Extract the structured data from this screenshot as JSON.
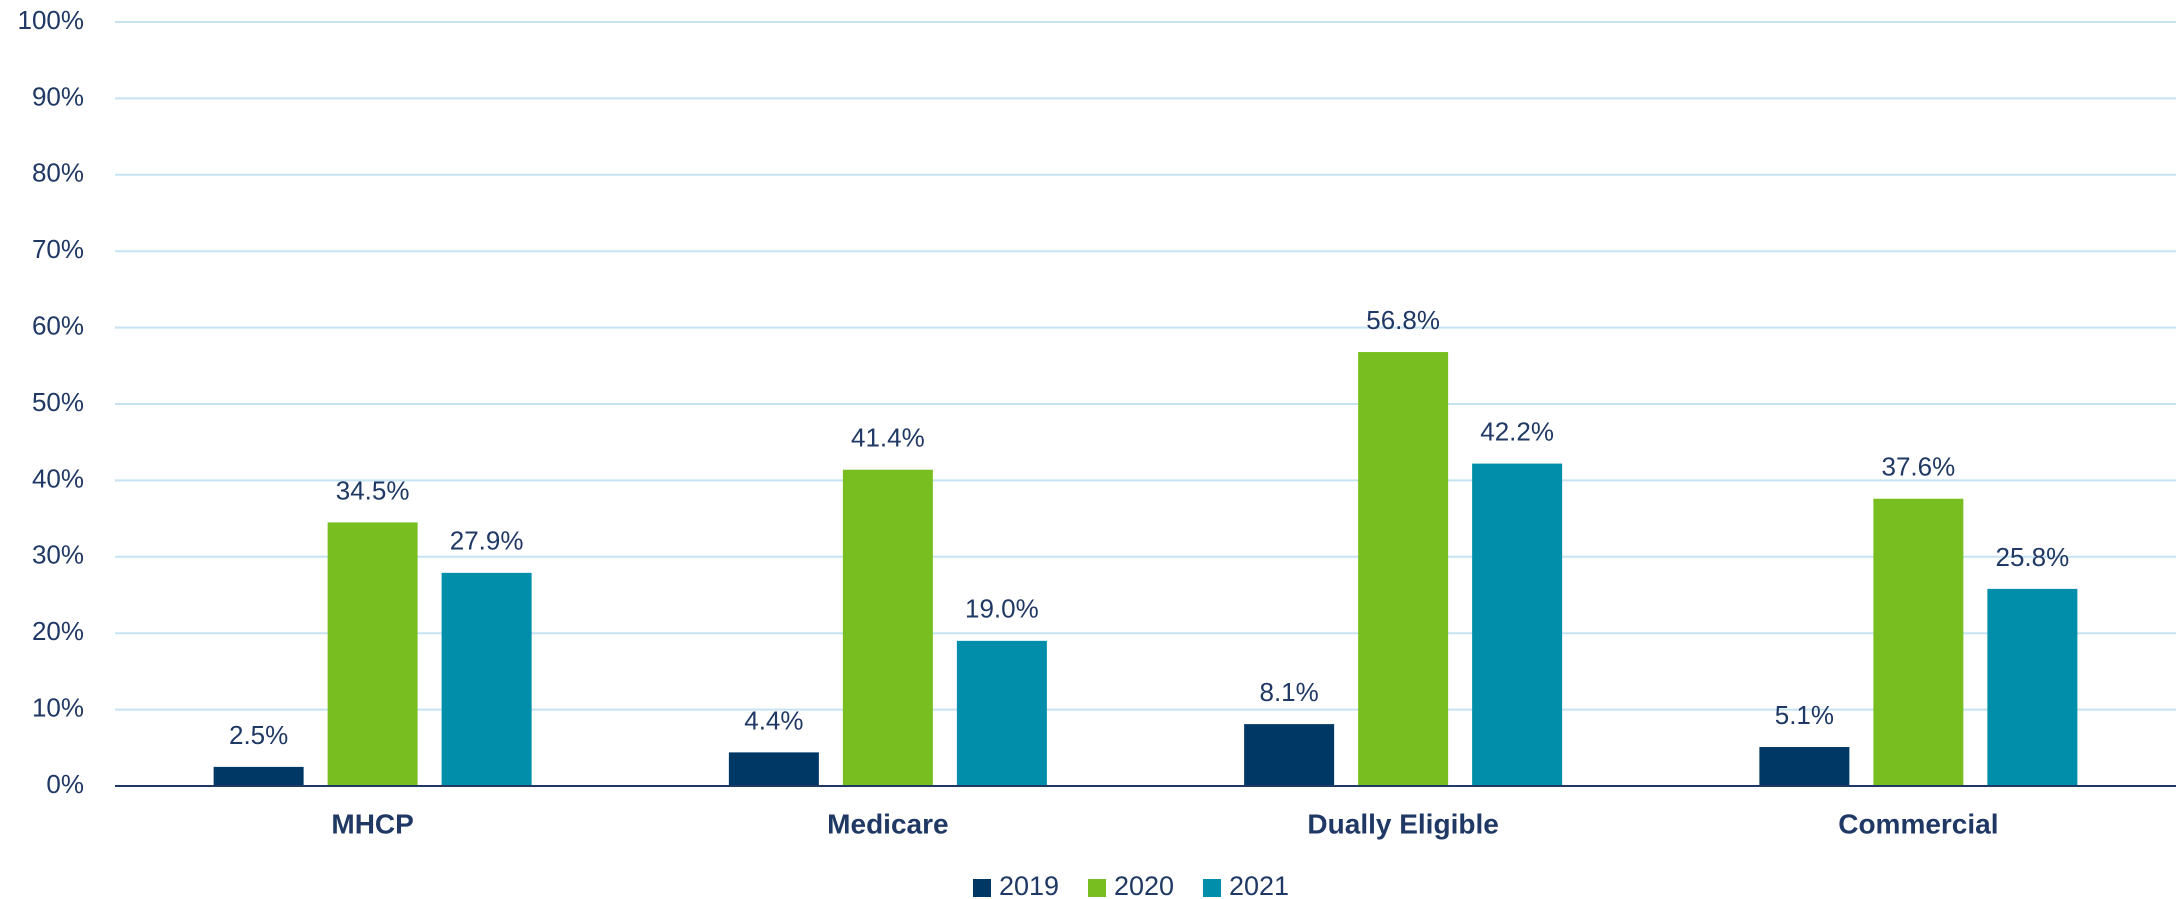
{
  "chart_data": {
    "type": "bar",
    "categories": [
      "MHCP",
      "Medicare",
      "Dually Eligible",
      "Commercial"
    ],
    "series": [
      {
        "name": "2019",
        "color": "#003865",
        "values": [
          2.5,
          4.4,
          8.1,
          5.1
        ],
        "value_labels": [
          "2.5%",
          "4.4%",
          "8.1%",
          "5.1%"
        ]
      },
      {
        "name": "2020",
        "color": "#78be21",
        "values": [
          34.5,
          41.4,
          56.8,
          37.6
        ],
        "value_labels": [
          "34.5%",
          "41.4%",
          "56.8%",
          "37.6%"
        ]
      },
      {
        "name": "2021",
        "color": "#008eaa",
        "values": [
          27.9,
          19.0,
          42.2,
          25.8
        ],
        "value_labels": [
          "27.9%",
          "19.0%",
          "42.2%",
          "25.8%"
        ]
      }
    ],
    "ylim": [
      0,
      100
    ],
    "yticks": [
      {
        "value": 0,
        "label": "0%"
      },
      {
        "value": 10,
        "label": "10%"
      },
      {
        "value": 20,
        "label": "20%"
      },
      {
        "value": 30,
        "label": "30%"
      },
      {
        "value": 40,
        "label": "40%"
      },
      {
        "value": 50,
        "label": "50%"
      },
      {
        "value": 60,
        "label": "60%"
      },
      {
        "value": 70,
        "label": "70%"
      },
      {
        "value": 80,
        "label": "80%"
      },
      {
        "value": 90,
        "label": "90%"
      },
      {
        "value": 100,
        "label": "100%"
      }
    ],
    "grid": true,
    "legend": "bottom"
  }
}
